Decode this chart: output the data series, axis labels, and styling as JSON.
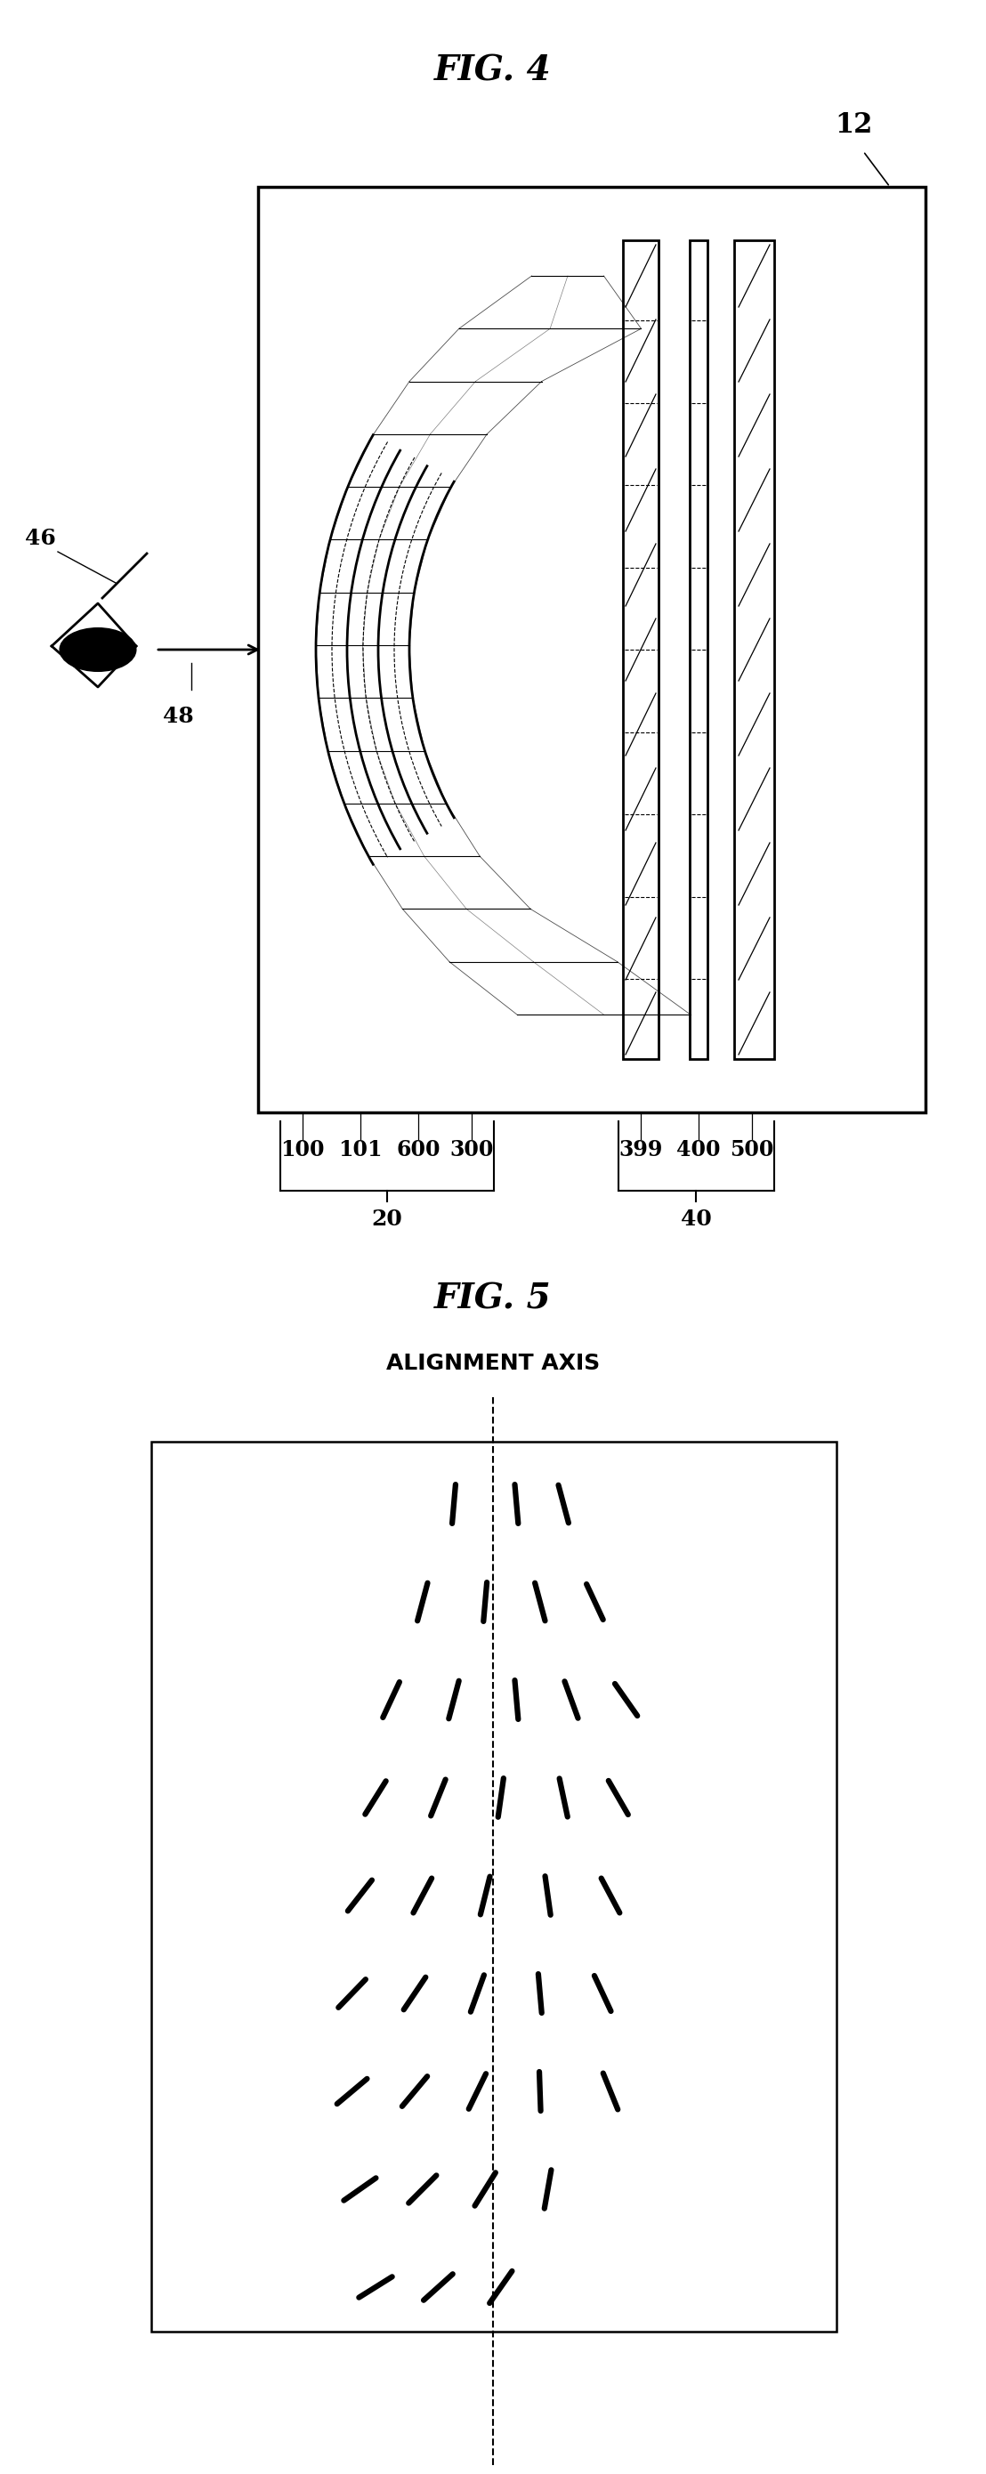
{
  "fig4_title": "FIG. 4",
  "fig5_title": "FIG. 5",
  "fig5_subtitle": "ALIGNMENT AXIS",
  "label_12": "12",
  "label_46": "46",
  "label_48": "48",
  "label_100": "100",
  "label_101": "101",
  "label_600": "600",
  "label_300": "300",
  "label_399": "399",
  "label_400": "400",
  "label_500": "500",
  "label_20": "20",
  "label_40": "40",
  "bg_color": "#ffffff",
  "line_color": "#000000"
}
